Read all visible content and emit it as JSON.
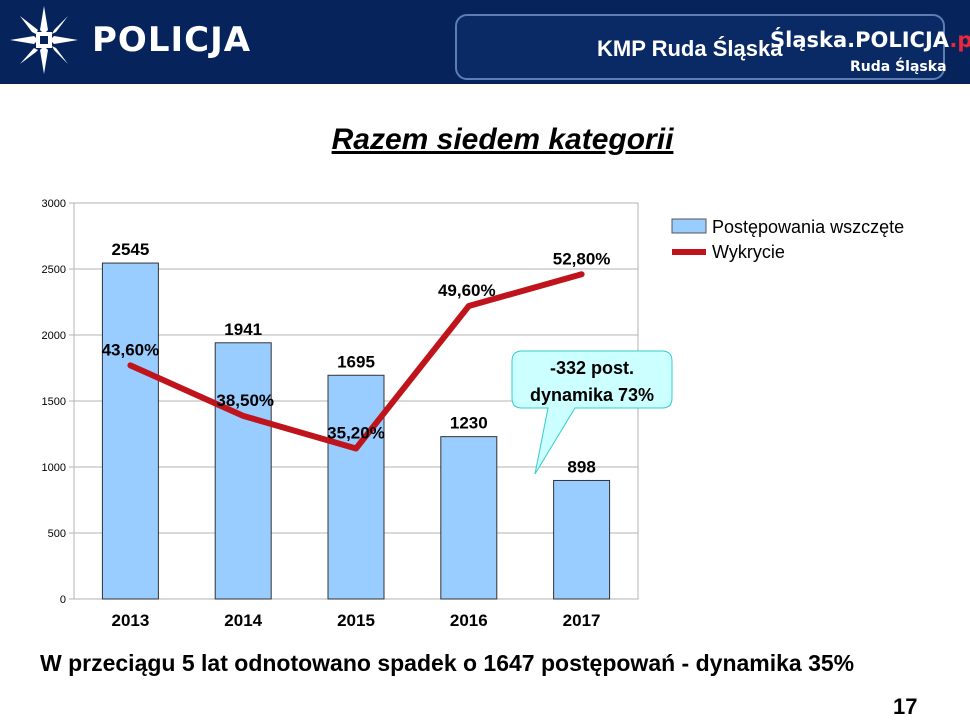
{
  "header": {
    "logo_text": "POLICJA",
    "unit_name": "KMP Ruda Śląska",
    "site_name_main": "Śląska.POLICJA",
    "site_name_tld": ".pl",
    "site_sub": "Ruda Śląska"
  },
  "title": "Razem siedem kategorii",
  "chart_data": {
    "type": "bar",
    "categories": [
      "2013",
      "2014",
      "2015",
      "2016",
      "2017"
    ],
    "series": [
      {
        "name": "Postępowania wszczęte",
        "type": "bar",
        "values": [
          2545,
          1941,
          1695,
          1230,
          898
        ],
        "labels": [
          "2545",
          "1941",
          "1695",
          "1230",
          "898"
        ],
        "color": "#99ccff"
      },
      {
        "name": "Wykrycie",
        "type": "line",
        "values": [
          43.6,
          38.5,
          35.2,
          49.6,
          52.8
        ],
        "labels": [
          "43,60%",
          "38,50%",
          "35,20%",
          "49,60%",
          "52,80%"
        ],
        "color": "#c0141c"
      }
    ],
    "yticks": [
      "0",
      "500",
      "1000",
      "1500",
      "2000",
      "2500",
      "3000"
    ],
    "ylim": [
      0,
      3000
    ],
    "grid": true,
    "legend": "top-right",
    "callout": {
      "line1": "-332 post.",
      "line2": "dynamika 73%"
    }
  },
  "footer": "W przeciągu 5 lat odnotowano spadek o 1647 postępowań - dynamika 35%",
  "page_number": "17"
}
